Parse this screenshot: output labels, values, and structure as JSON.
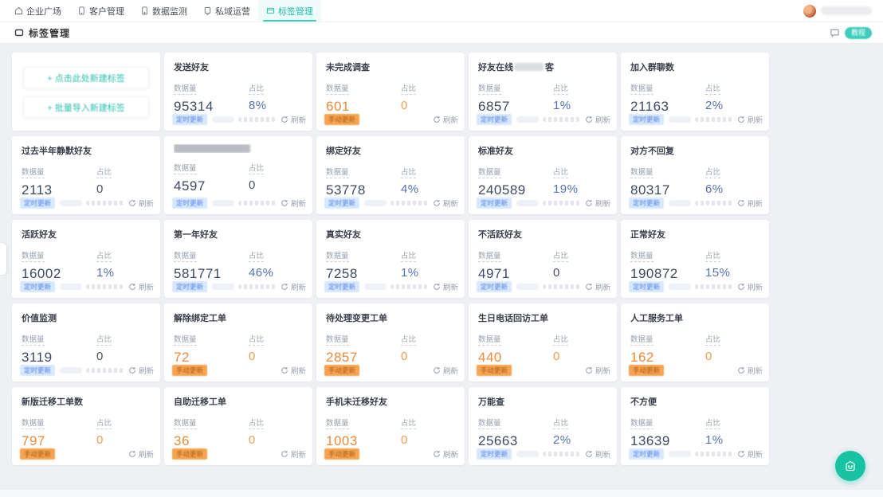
{
  "colors": {
    "accent_teal": "#2bbfae",
    "badge_blue": "#4c7fe0",
    "orange": "#ec8a3d",
    "fab_green": "#17c3a3"
  },
  "nav": {
    "tabs": [
      {
        "label": "企业广场",
        "icon": "home-icon",
        "active": false
      },
      {
        "label": "客户管理",
        "icon": "phone-icon",
        "active": false
      },
      {
        "label": "数据监测",
        "icon": "device-icon",
        "active": false
      },
      {
        "label": "私域运营",
        "icon": "chat-icon",
        "active": false
      },
      {
        "label": "标签管理",
        "icon": "tag-icon",
        "active": true
      }
    ],
    "user": {
      "name": ""
    }
  },
  "header": {
    "title": "标签管理",
    "help_button": "教程"
  },
  "create_card": {
    "buttons": [
      {
        "label": "+ 点击此处新建标签"
      },
      {
        "label": "+ 批量导入新建标签"
      }
    ]
  },
  "labels": {
    "value_label": "数据量",
    "ratio_label": "占比",
    "refresh": "刷新",
    "badge_blue": "定时更新",
    "badge_orange": "手动更新"
  },
  "cards": [
    {
      "title": "发送好友",
      "value": "95314",
      "ratio": "8%",
      "color": "blue",
      "progress": true,
      "redact": "none"
    },
    {
      "title": "未完成调查",
      "value": "601",
      "ratio": "0",
      "color": "orange",
      "progress": false,
      "redact": "none"
    },
    {
      "title": "好友在线",
      "title_suffix": "客",
      "value": "6857",
      "ratio": "1%",
      "color": "blue",
      "progress": true,
      "redact": "partial"
    },
    {
      "title": "加入群聊数",
      "value": "21163",
      "ratio": "2%",
      "color": "blue",
      "progress": true,
      "redact": "none"
    },
    {
      "title": "过去半年静默好友",
      "value": "2113",
      "ratio": "0",
      "color": "blue",
      "progress": true,
      "redact": "none"
    },
    {
      "title": "",
      "value": "4597",
      "ratio": "0",
      "color": "blue",
      "progress": true,
      "redact": "full"
    },
    {
      "title": "绑定好友",
      "value": "53778",
      "ratio": "4%",
      "color": "blue",
      "progress": true,
      "redact": "none"
    },
    {
      "title": "标准好友",
      "value": "240589",
      "ratio": "19%",
      "color": "blue",
      "progress": true,
      "redact": "none"
    },
    {
      "title": "对方不回复",
      "value": "80317",
      "ratio": "6%",
      "color": "blue",
      "progress": true,
      "redact": "none"
    },
    {
      "title": "活跃好友",
      "value": "16002",
      "ratio": "1%",
      "color": "blue",
      "progress": true,
      "redact": "none"
    },
    {
      "title": "第一年好友",
      "value": "581771",
      "ratio": "46%",
      "color": "blue",
      "progress": true,
      "redact": "none"
    },
    {
      "title": "真实好友",
      "value": "7258",
      "ratio": "1%",
      "color": "blue",
      "progress": true,
      "redact": "none"
    },
    {
      "title": "不活跃好友",
      "value": "4971",
      "ratio": "0",
      "color": "blue",
      "progress": true,
      "redact": "none"
    },
    {
      "title": "正常好友",
      "value": "190872",
      "ratio": "15%",
      "color": "blue",
      "progress": true,
      "redact": "none"
    },
    {
      "title": "价值监测",
      "value": "3119",
      "ratio": "0",
      "color": "blue",
      "progress": true,
      "redact": "none"
    },
    {
      "title": "解除绑定工单",
      "value": "72",
      "ratio": "0",
      "color": "orange",
      "progress": false,
      "redact": "none"
    },
    {
      "title": "待处理变更工单",
      "value": "2857",
      "ratio": "0",
      "color": "orange",
      "progress": false,
      "redact": "none"
    },
    {
      "title": "生日电话回访工单",
      "value": "440",
      "ratio": "0",
      "color": "orange",
      "progress": false,
      "redact": "none"
    },
    {
      "title": "人工服务工单",
      "value": "162",
      "ratio": "0",
      "color": "orange",
      "progress": false,
      "redact": "none"
    },
    {
      "title": "新版迁移工单数",
      "value": "797",
      "ratio": "0",
      "color": "orange",
      "progress": false,
      "redact": "none"
    },
    {
      "title": "自助迁移工单",
      "value": "36",
      "ratio": "0",
      "color": "orange",
      "progress": false,
      "redact": "none"
    },
    {
      "title": "手机未迁移好友",
      "value": "1003",
      "ratio": "0",
      "color": "orange",
      "progress": false,
      "redact": "none"
    },
    {
      "title": "万能查",
      "value": "25663",
      "ratio": "2%",
      "color": "blue",
      "progress": true,
      "redact": "none"
    },
    {
      "title": "不方便",
      "value": "13639",
      "ratio": "1%",
      "color": "blue",
      "progress": true,
      "redact": "none"
    }
  ]
}
